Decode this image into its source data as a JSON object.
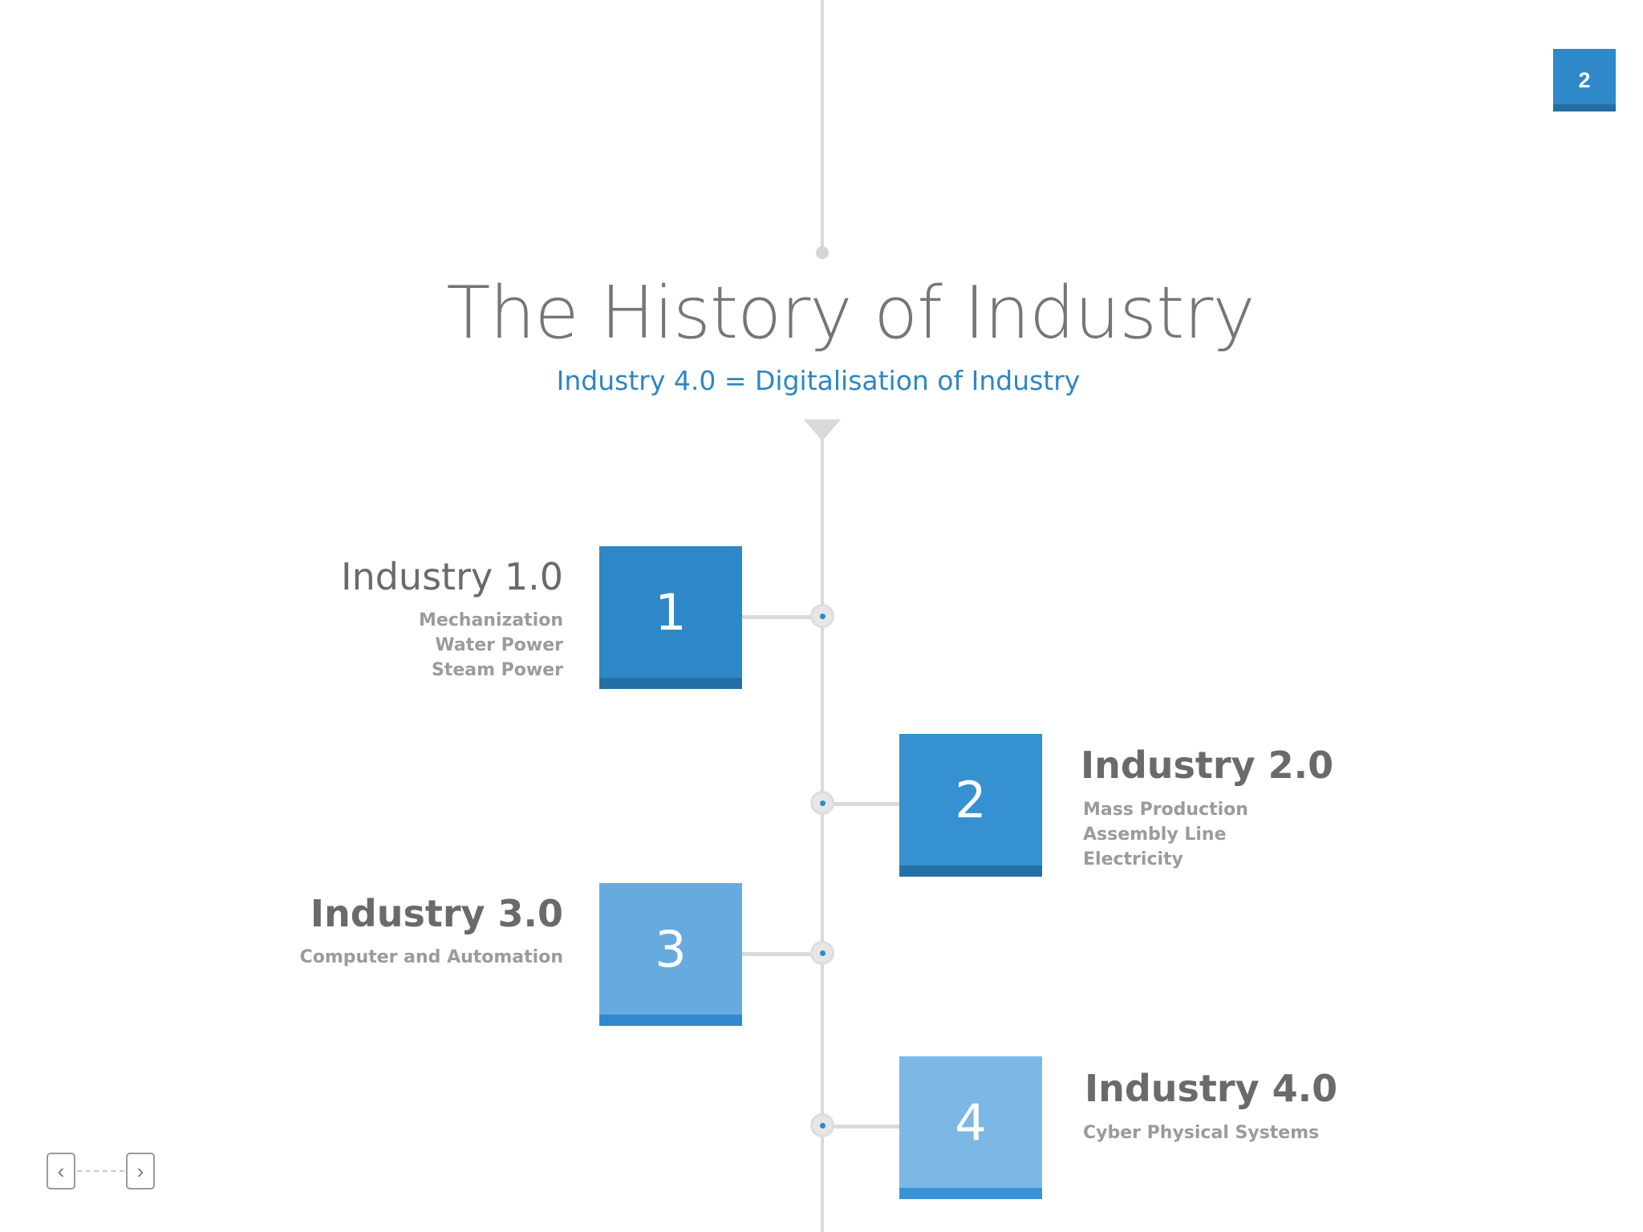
{
  "page_number": "2",
  "title": "The History of Industry",
  "subtitle": "Industry 4.0 = Digitalisation of Industry",
  "stages": [
    {
      "number": "1",
      "title": "Industry 1.0",
      "details": [
        "Mechanization",
        "Water Power",
        "Steam Power"
      ]
    },
    {
      "number": "2",
      "title": "Industry 2.0",
      "details": [
        "Mass Production",
        "Assembly Line",
        "Electricity"
      ]
    },
    {
      "number": "3",
      "title": "Industry 3.0",
      "details": [
        "Computer and Automation"
      ]
    },
    {
      "number": "4",
      "title": "Industry 4.0",
      "details": [
        "Cyber Physical Systems"
      ]
    }
  ],
  "nav": {
    "prev_icon": "chevron-left-icon",
    "next_icon": "chevron-right-icon"
  },
  "colors": {
    "accent": "#2f88c8",
    "light_accent": "#7cb8e6",
    "line": "#dadada",
    "text": "#767676"
  }
}
